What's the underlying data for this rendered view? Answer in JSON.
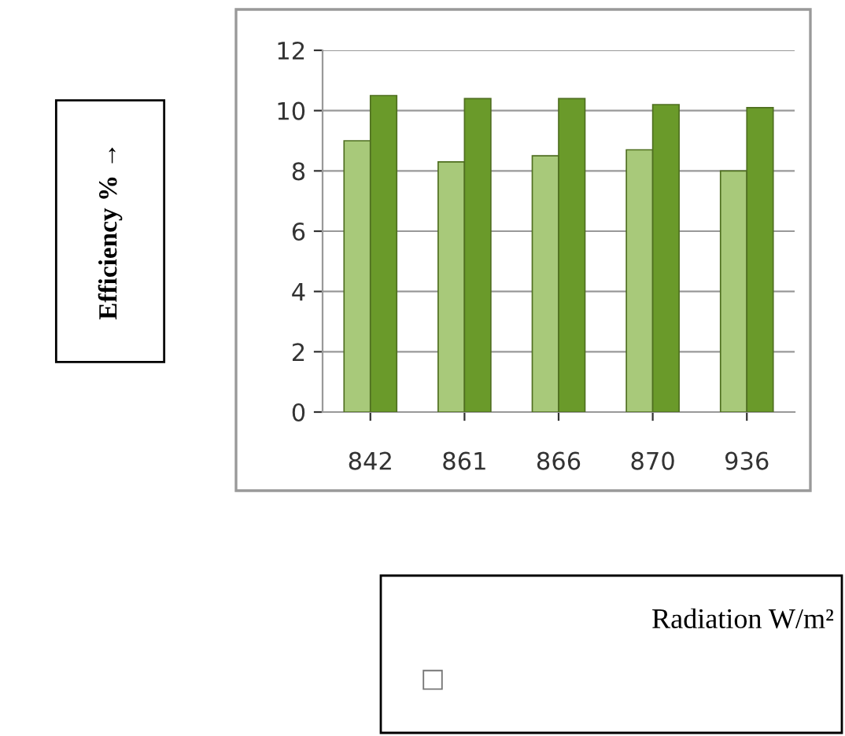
{
  "chart_data": {
    "type": "bar",
    "categories": [
      "842",
      "861",
      "866",
      "870",
      "936"
    ],
    "series": [
      {
        "color": "#a8c97a",
        "values": [
          9.0,
          8.3,
          8.5,
          8.7,
          8.0
        ]
      },
      {
        "color": "#6a9a2a",
        "values": [
          10.5,
          10.4,
          10.4,
          10.2,
          10.1
        ]
      }
    ],
    "ylim": [
      0,
      12
    ],
    "yticks": [
      0,
      2,
      4,
      6,
      8,
      10,
      12
    ],
    "grid": "y",
    "legend": false,
    "annotations": [
      "Efficiency % →",
      "Radiation W/m²",
      "□"
    ]
  }
}
